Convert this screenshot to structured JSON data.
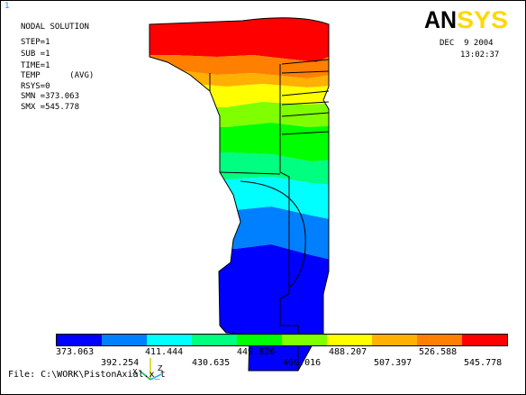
{
  "window": {
    "number": "1"
  },
  "header": {
    "title": "NODAL SOLUTION",
    "lines": [
      "STEP=1",
      "SUB =1",
      "TIME=1",
      "TEMP      (AVG)",
      "RSYS=0",
      "SMN =373.063",
      "SMX =545.778"
    ]
  },
  "brand": {
    "logo_text": "ANSYS",
    "date": "DEC  9 2004",
    "time": "13:02:37"
  },
  "colors": {
    "band1": "#0000ff",
    "band2": "#0080ff",
    "band3": "#00ffff",
    "band4": "#00ff80",
    "band5": "#00ff00",
    "band6": "#80ff00",
    "band7": "#ffff00",
    "band8": "#ffb000",
    "band9": "#ff8000",
    "band10": "#ff0000"
  },
  "legend": {
    "colors": [
      "#0000ff",
      "#0080ff",
      "#00ffff",
      "#00ff80",
      "#00ff00",
      "#80ff00",
      "#ffff00",
      "#ffb000",
      "#ff8000",
      "#ff0000"
    ],
    "labels_top": [
      "373.063",
      "411.444",
      "449.826",
      "488.207",
      "526.588"
    ],
    "labels_bottom": [
      "392.254",
      "430.635",
      "469.016",
      "507.397",
      "545.778"
    ]
  },
  "triad_labels": {
    "x": "X",
    "z": "Z"
  },
  "footer": {
    "file_label": "File: C:\\WORK\\PistonAxial.x_t"
  }
}
